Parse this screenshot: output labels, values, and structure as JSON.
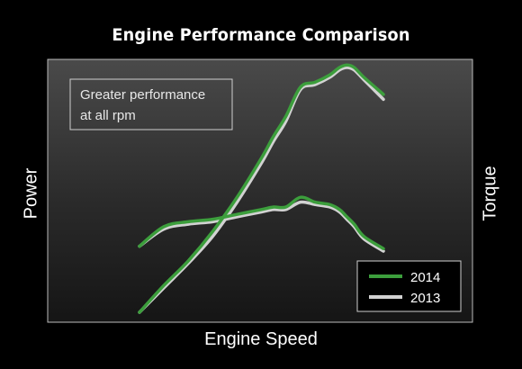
{
  "chart_data": {
    "type": "line",
    "title": "Engine Performance Comparison",
    "xlabel": "Engine Speed",
    "ylabel_left": "Power",
    "ylabel_right": "Torque",
    "annotation": "Greater performance at all rpm",
    "annotation_lines": [
      "Greater performance",
      "at all rpm"
    ],
    "legend_placement": "bottom-right",
    "grid": false,
    "xlim": [
      0,
      100
    ],
    "ylim": [
      0,
      100
    ],
    "series": [
      {
        "name": "2014",
        "color": "#3c9e3c",
        "x": [
          0,
          10,
          20,
          30,
          40,
          50,
          55,
          60,
          66,
          72,
          78,
          82,
          85,
          88,
          92,
          100
        ],
        "power": [
          0,
          11,
          21,
          33,
          47,
          63,
          72,
          80,
          92,
          94,
          97,
          100,
          101,
          100,
          96,
          89
        ],
        "torque": [
          27,
          35,
          37,
          38,
          40,
          42,
          43,
          43,
          47,
          45,
          44,
          42,
          39,
          36,
          31,
          26
        ]
      },
      {
        "name": "2013",
        "color": "#d2d2d2",
        "x": [
          0,
          10,
          20,
          30,
          40,
          50,
          55,
          60,
          66,
          72,
          78,
          82,
          85,
          88,
          92,
          100
        ],
        "power": [
          0,
          10,
          20,
          31,
          45,
          61,
          70,
          78,
          91,
          93,
          96,
          99,
          100,
          99,
          95,
          87
        ],
        "torque": [
          27,
          34,
          36,
          37,
          39,
          41,
          42,
          42,
          45,
          44,
          43,
          41,
          38,
          35,
          30,
          25
        ]
      }
    ]
  }
}
